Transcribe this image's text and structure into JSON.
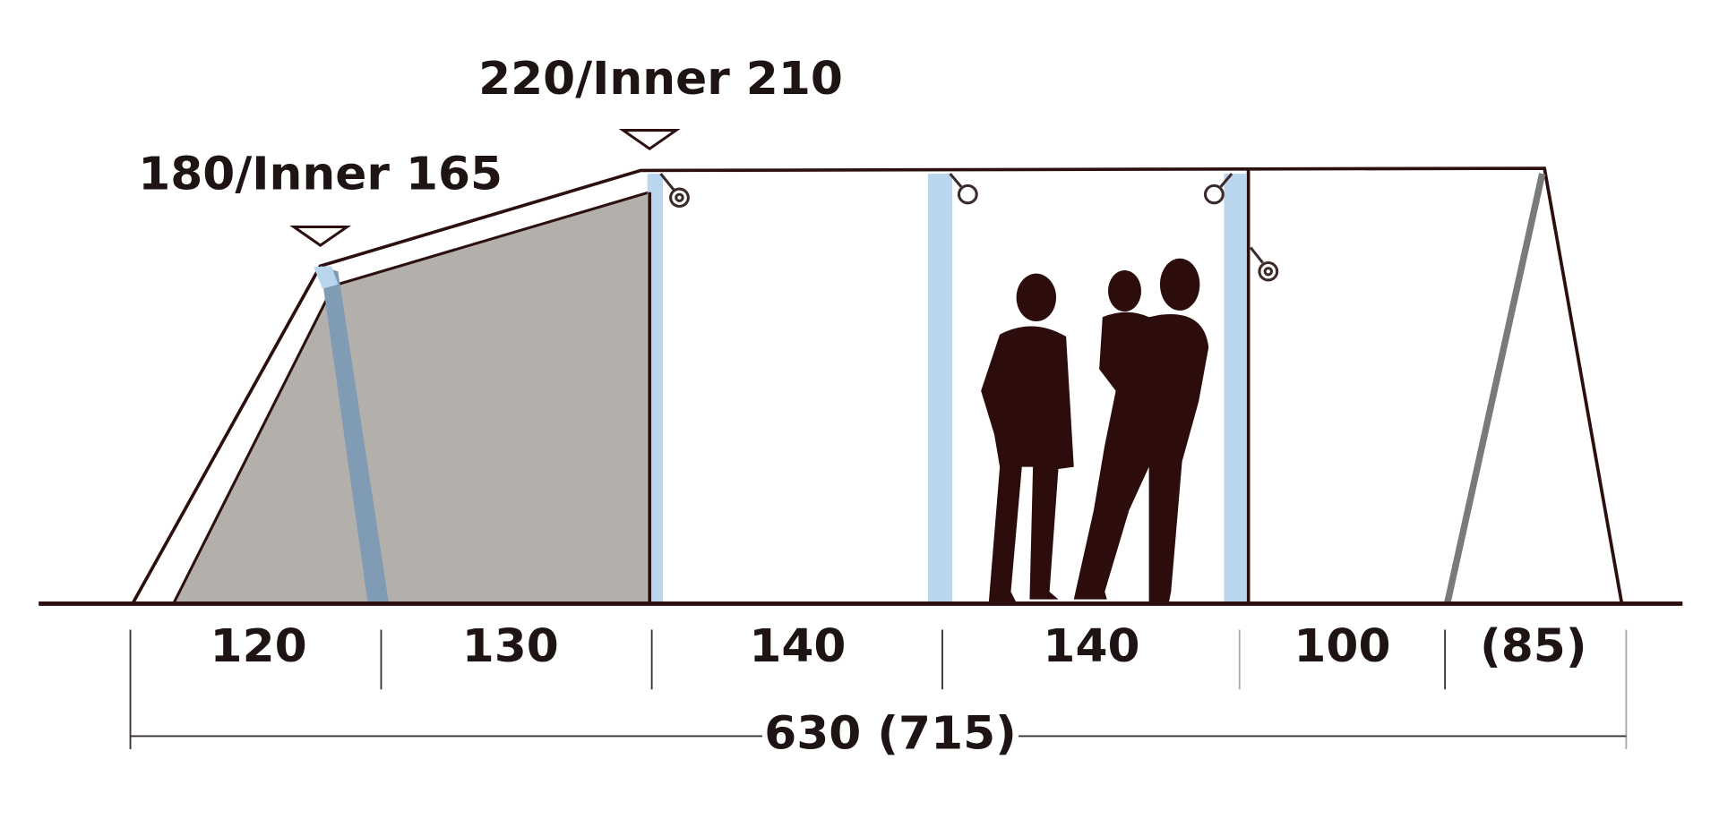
{
  "heights": [
    {
      "label": "180/Inner 165"
    },
    {
      "label": "220/Inner 210"
    }
  ],
  "segments": [
    "120",
    "130",
    "140",
    "140",
    "100",
    "(85)"
  ],
  "total": "630 (715)"
}
